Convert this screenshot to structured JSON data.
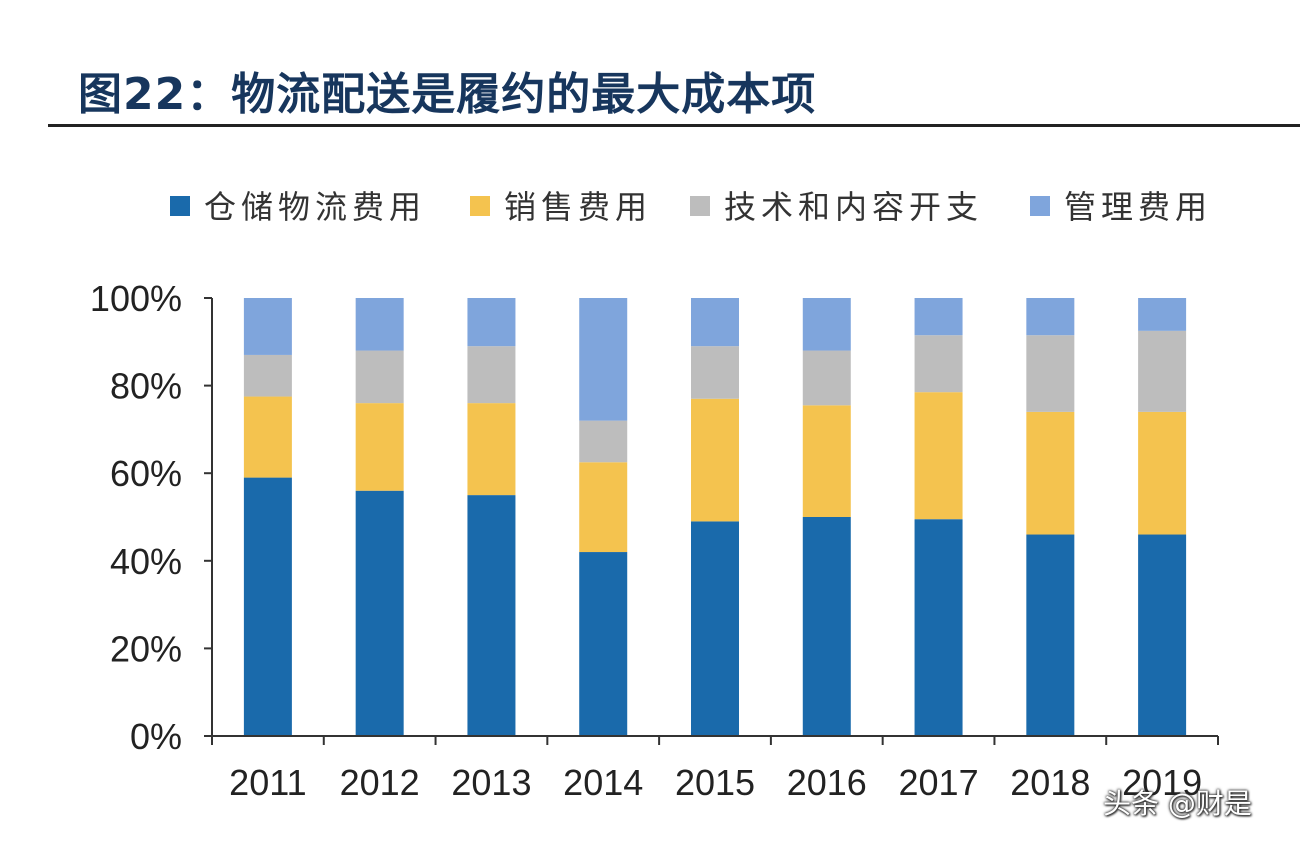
{
  "title": "图22：物流配送是履约的最大成本项",
  "watermark": "头条 @财是",
  "chart_data": {
    "type": "bar",
    "stacked": true,
    "percent": true,
    "categories": [
      "2011",
      "2012",
      "2013",
      "2014",
      "2015",
      "2016",
      "2017",
      "2018",
      "2019"
    ],
    "series": [
      {
        "name": "仓储物流费用",
        "color": "#1a6aab",
        "values": [
          59,
          56,
          55,
          42,
          49,
          50,
          49.5,
          46,
          46
        ]
      },
      {
        "name": "销售费用",
        "color": "#f4c34f",
        "values": [
          18.5,
          20,
          21,
          20.5,
          28,
          25.5,
          29,
          28,
          28
        ]
      },
      {
        "name": "技术和内容开支",
        "color": "#bdbdbd",
        "values": [
          9.5,
          12,
          13,
          9.5,
          12,
          12.5,
          13,
          17.5,
          18.5
        ]
      },
      {
        "name": "管理费用",
        "color": "#7fa5dc",
        "values": [
          13,
          12,
          11,
          28,
          11,
          12,
          8.5,
          8.5,
          7.5
        ]
      }
    ],
    "yticks": [
      "0%",
      "20%",
      "40%",
      "60%",
      "80%",
      "100%"
    ],
    "ylim": [
      0,
      100
    ],
    "legend_position": "top"
  }
}
